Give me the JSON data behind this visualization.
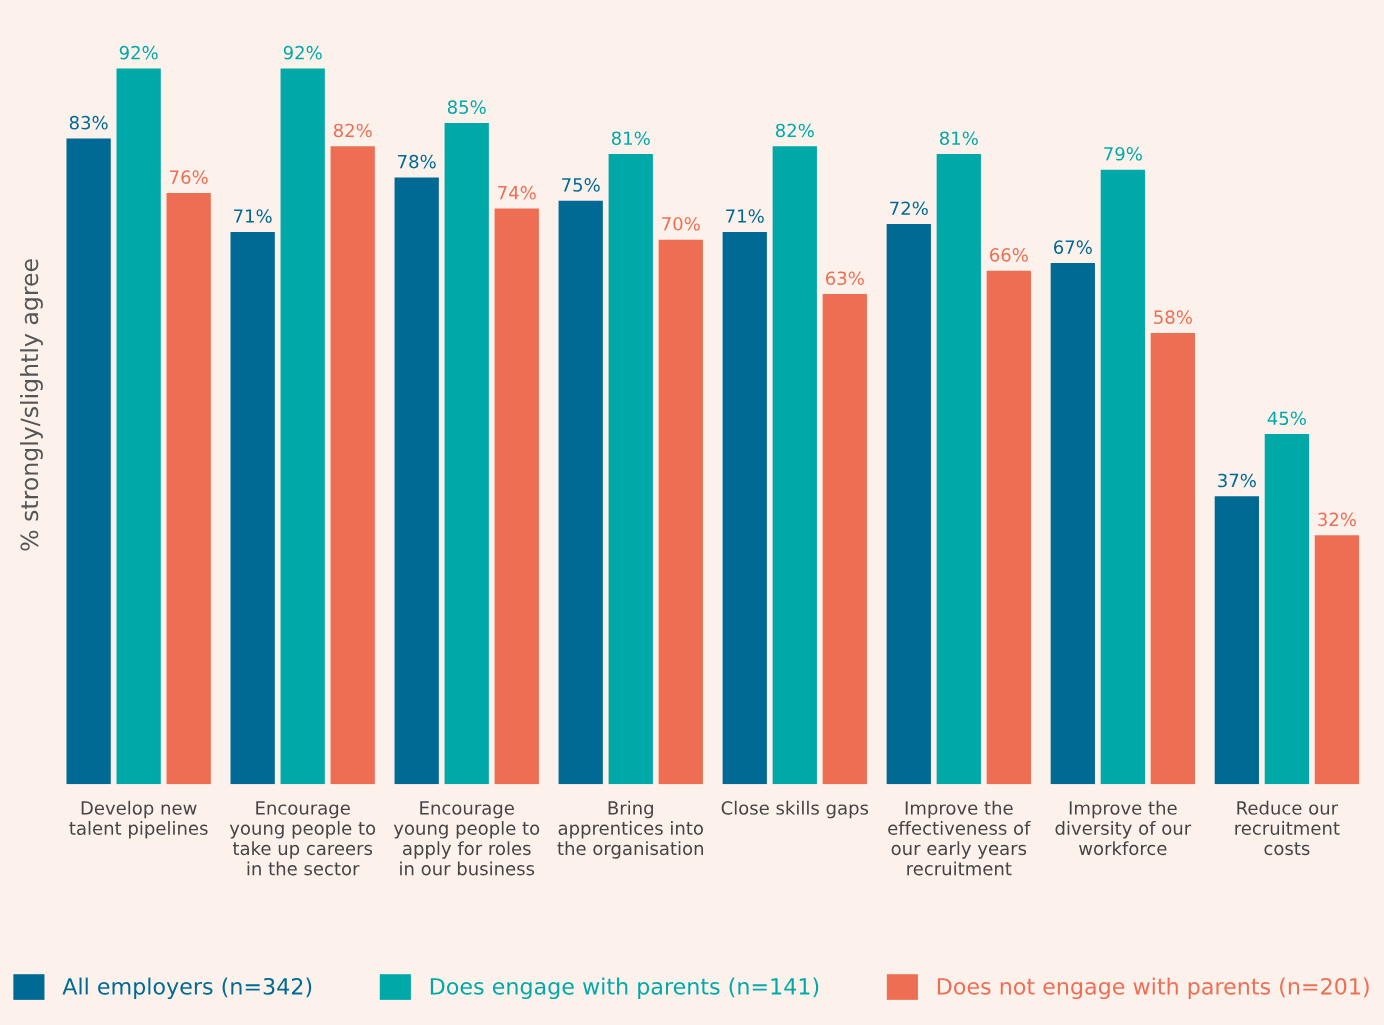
{
  "chart_data": {
    "type": "bar",
    "ylabel": "% strongly/slightly agree",
    "categories": [
      "Develop new\ntalent pipelines",
      "Encourage\nyoung people to\ntake up careers\nin the sector",
      "Encourage\nyoung people to\napply for roles\nin our business",
      "Bring\napprentices into\nthe organisation",
      "Close skills gaps",
      "Improve the\neffectiveness of\nour early years\nrecruitment",
      "Improve the\ndiversity of our\nworkforce",
      "Reduce our\nrecruitment\ncosts"
    ],
    "series": [
      {
        "name": "All employers (n=342)",
        "color": "#006994",
        "values": [
          83,
          71,
          78,
          75,
          71,
          72,
          67,
          37
        ],
        "value_labels": [
          "83%",
          "71%",
          "78%",
          "75%",
          "71%",
          "72%",
          "67%",
          "37%"
        ]
      },
      {
        "name": "Does engage with parents (n=141)",
        "color": "#00a9a8",
        "values": [
          92,
          92,
          85,
          81,
          82,
          81,
          79,
          45
        ],
        "value_labels": [
          "92%",
          "92%",
          "85%",
          "81%",
          "82%",
          "81%",
          "79%",
          "45%"
        ]
      },
      {
        "name": "Does not engage with parents (n=201)",
        "color": "#ee6e53",
        "values": [
          76,
          82,
          74,
          70,
          63,
          66,
          58,
          32
        ],
        "value_labels": [
          "76%",
          "82%",
          "74%",
          "70%",
          "63%",
          "66%",
          "58%",
          "32%"
        ]
      }
    ],
    "legend": "bottom",
    "grid": false
  }
}
